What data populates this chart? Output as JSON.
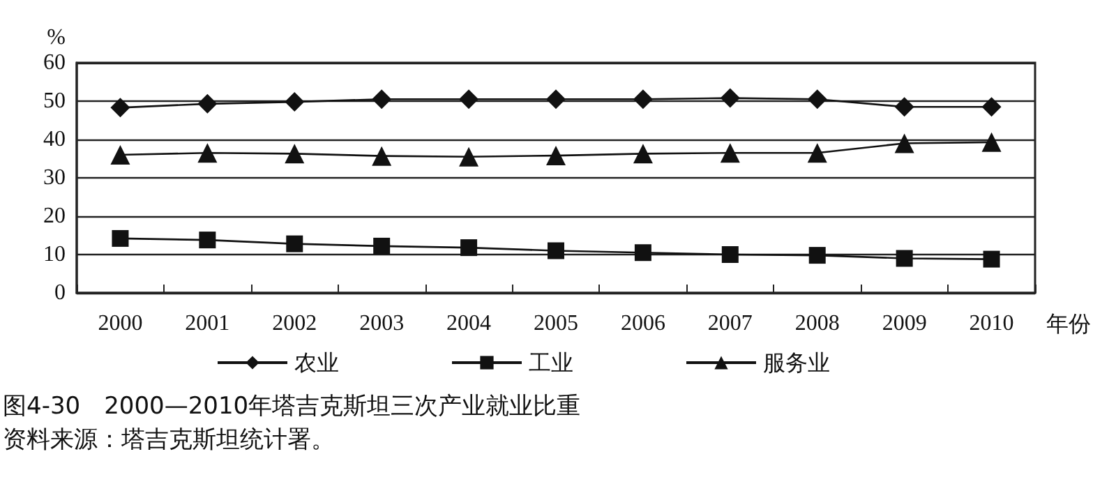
{
  "chart_data": {
    "type": "line",
    "ylabel": "%",
    "xlabel": "年份",
    "categories": [
      "2000",
      "2001",
      "2002",
      "2003",
      "2004",
      "2005",
      "2006",
      "2007",
      "2008",
      "2009",
      "2010"
    ],
    "series": [
      {
        "name": "农业",
        "color": "#111111",
        "marker": "diamond",
        "values": [
          48.3,
          49.3,
          49.8,
          50.5,
          50.5,
          50.5,
          50.5,
          50.8,
          50.5,
          48.5,
          48.5
        ]
      },
      {
        "name": "工业",
        "color": "#111111",
        "marker": "square",
        "values": [
          14.2,
          13.8,
          12.8,
          12.2,
          11.8,
          11.0,
          10.5,
          10.0,
          9.8,
          9.0,
          8.8
        ]
      },
      {
        "name": "服务业",
        "color": "#111111",
        "marker": "triangle",
        "values": [
          36.0,
          36.5,
          36.3,
          35.7,
          35.5,
          35.8,
          36.3,
          36.5,
          36.5,
          39.0,
          39.3
        ]
      }
    ],
    "ylim": [
      0,
      60
    ],
    "yticks": [
      0,
      10,
      20,
      30,
      40,
      50,
      60
    ],
    "grid": "y",
    "legend": "bottom",
    "annotations": [
      "图4-30　2000—2010年塔吉克斯坦三次产业就业比重",
      "资料来源：塔吉克斯坦统计署。"
    ]
  }
}
